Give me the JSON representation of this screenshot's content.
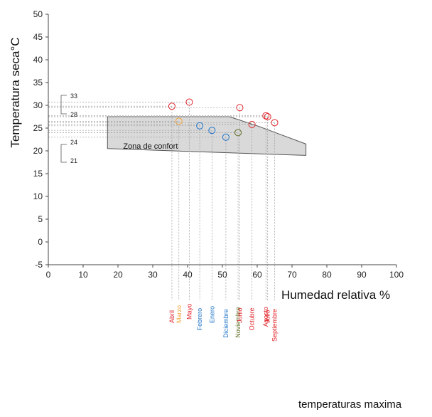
{
  "chart_data": {
    "type": "scatter",
    "xlabel": "Humedad relativa %",
    "ylabel": "Temperatura seca°C",
    "xlim": [
      0,
      100
    ],
    "ylim": [
      -5,
      50
    ],
    "xticks": [
      "0",
      "10",
      "20",
      "30",
      "40",
      "50",
      "60",
      "70",
      "80",
      "90",
      "100"
    ],
    "yticks": [
      "-5",
      "0",
      "5",
      "10",
      "15",
      "20",
      "25",
      "30",
      "35",
      "40",
      "45",
      "50"
    ],
    "grid": false,
    "zone": {
      "label": "Zona de confort",
      "polygon": [
        [
          17,
          27.5
        ],
        [
          52,
          27.5
        ],
        [
          60,
          25.5
        ],
        [
          74,
          21.5
        ],
        [
          74,
          19
        ],
        [
          17,
          20.5
        ]
      ]
    },
    "bracket_labels": [
      "33",
      "28",
      "24",
      "21"
    ],
    "footer": "temperaturas maxima",
    "points": [
      {
        "month": "Abril",
        "x": 35.5,
        "y": 29.8,
        "color": "#e0242a"
      },
      {
        "month": "Marzo",
        "x": 37.5,
        "y": 26.5,
        "color": "#f2a23a"
      },
      {
        "month": "Mayo",
        "x": 40.5,
        "y": 30.7,
        "color": "#e0242a"
      },
      {
        "month": "Febrero",
        "x": 43.5,
        "y": 25.5,
        "color": "#1e73c8"
      },
      {
        "month": "Enero",
        "x": 47.0,
        "y": 24.5,
        "color": "#1e73c8"
      },
      {
        "month": "Diciembre",
        "x": 51.0,
        "y": 23.0,
        "color": "#1e73c8"
      },
      {
        "month": "Noviembre",
        "x": 54.5,
        "y": 24.0,
        "color": "#5d6b22"
      },
      {
        "month": "Junio",
        "x": 55.0,
        "y": 29.5,
        "color": "#e0242a"
      },
      {
        "month": "Octubre",
        "x": 58.5,
        "y": 25.8,
        "color": "#e0242a"
      },
      {
        "month": "Agosto",
        "x": 62.5,
        "y": 27.7,
        "color": "#e0242a"
      },
      {
        "month": "Julio",
        "x": 63.0,
        "y": 27.5,
        "color": "#e0242a"
      },
      {
        "month": "Septiembre",
        "x": 65.0,
        "y": 26.2,
        "color": "#e0242a"
      }
    ]
  }
}
